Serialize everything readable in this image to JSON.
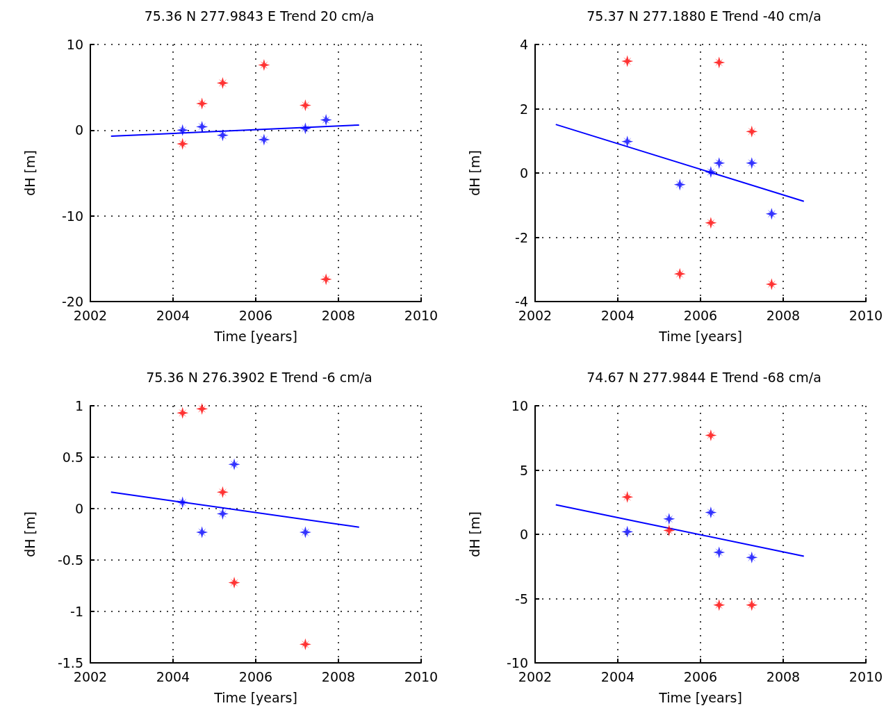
{
  "chart_data": [
    {
      "type": "scatter",
      "title": "75.36 N 277.9843 E Trend 20 cm/a",
      "xlabel": "Time [years]",
      "ylabel": "dH [m]",
      "xlim": [
        2002,
        2010
      ],
      "xticks": [
        2002,
        2004,
        2006,
        2008,
        2010
      ],
      "ylim": [
        -20,
        10
      ],
      "yticks": [
        -20,
        -10,
        0,
        10
      ],
      "grid": true,
      "marker": "star",
      "series": [
        {
          "color": "#ff0000",
          "x": [
            2004.23,
            2004.7,
            2005.2,
            2006.2,
            2007.2,
            2007.7
          ],
          "values": [
            -1.6,
            3.1,
            5.5,
            7.6,
            2.9,
            -17.4
          ]
        },
        {
          "color": "#0000ff",
          "x": [
            2004.23,
            2004.7,
            2005.2,
            2006.2,
            2007.2,
            2007.7
          ],
          "values": [
            0,
            0.4,
            -0.6,
            -1.1,
            0.2,
            1.2
          ]
        },
        {
          "type": "line",
          "marker": "none",
          "color": "#0000ff",
          "x": [
            2002.5,
            2008.5
          ],
          "values": [
            -0.7,
            0.6
          ]
        }
      ]
    },
    {
      "type": "scatter",
      "title": "75.37 N 277.1880 E Trend -40 cm/a",
      "xlabel": "Time [years]",
      "ylabel": "dH [m]",
      "xlim": [
        2002,
        2010
      ],
      "xticks": [
        2002,
        2004,
        2006,
        2008,
        2010
      ],
      "ylim": [
        -4,
        4
      ],
      "yticks": [
        -4,
        -2,
        0,
        2,
        4
      ],
      "grid": true,
      "marker": "star",
      "series": [
        {
          "color": "#ff0000",
          "x": [
            2004.23,
            2005.5,
            2006.25,
            2006.45,
            2007.24,
            2007.72
          ],
          "values": [
            3.48,
            -3.14,
            -1.55,
            3.44,
            1.29,
            -3.46
          ]
        },
        {
          "color": "#0000ff",
          "x": [
            2004.23,
            2005.5,
            2006.25,
            2006.45,
            2007.24,
            2007.72
          ],
          "values": [
            0.98,
            -0.36,
            0.03,
            0.31,
            0.31,
            -1.27
          ]
        },
        {
          "type": "line",
          "marker": "none",
          "color": "#0000ff",
          "x": [
            2002.5,
            2008.5
          ],
          "values": [
            1.51,
            -0.88
          ]
        }
      ]
    },
    {
      "type": "scatter",
      "title": "75.36 N 276.3902 E Trend -6 cm/a",
      "xlabel": "Time [years]",
      "ylabel": "dH [m]",
      "xlim": [
        2002,
        2010
      ],
      "xticks": [
        2002,
        2004,
        2006,
        2008,
        2010
      ],
      "ylim": [
        -1.5,
        1
      ],
      "yticks": [
        -1.5,
        -1,
        -0.5,
        0,
        0.5,
        1
      ],
      "grid": true,
      "marker": "star",
      "series": [
        {
          "color": "#ff0000",
          "x": [
            2004.23,
            2004.7,
            2005.2,
            2005.48,
            2007.2
          ],
          "values": [
            0.93,
            0.97,
            0.16,
            -0.72,
            -1.32
          ]
        },
        {
          "color": "#0000ff",
          "x": [
            2004.23,
            2004.7,
            2005.2,
            2005.48,
            2007.2
          ],
          "values": [
            0.06,
            -0.23,
            -0.05,
            0.43,
            -0.23
          ]
        },
        {
          "type": "line",
          "marker": "none",
          "color": "#0000ff",
          "x": [
            2002.5,
            2008.5
          ],
          "values": [
            0.16,
            -0.18
          ]
        }
      ]
    },
    {
      "type": "scatter",
      "title": "74.67 N 277.9844 E Trend -68 cm/a",
      "xlabel": "Time [years]",
      "ylabel": "dH [m]",
      "xlim": [
        2002,
        2010
      ],
      "xticks": [
        2002,
        2004,
        2006,
        2008,
        2010
      ],
      "ylim": [
        -10,
        10
      ],
      "yticks": [
        -10,
        -5,
        0,
        5,
        10
      ],
      "grid": true,
      "marker": "star",
      "series": [
        {
          "color": "#ff0000",
          "x": [
            2004.23,
            2005.24,
            2006.25,
            2006.45,
            2007.24
          ],
          "values": [
            2.9,
            0.3,
            7.7,
            -5.5,
            -5.5
          ]
        },
        {
          "color": "#0000ff",
          "x": [
            2004.23,
            2005.24,
            2006.25,
            2006.45,
            2007.24
          ],
          "values": [
            0.2,
            1.2,
            1.7,
            -1.4,
            -1.8
          ]
        },
        {
          "type": "line",
          "marker": "none",
          "color": "#0000ff",
          "x": [
            2002.5,
            2008.5
          ],
          "values": [
            2.3,
            -1.7
          ]
        }
      ]
    }
  ]
}
